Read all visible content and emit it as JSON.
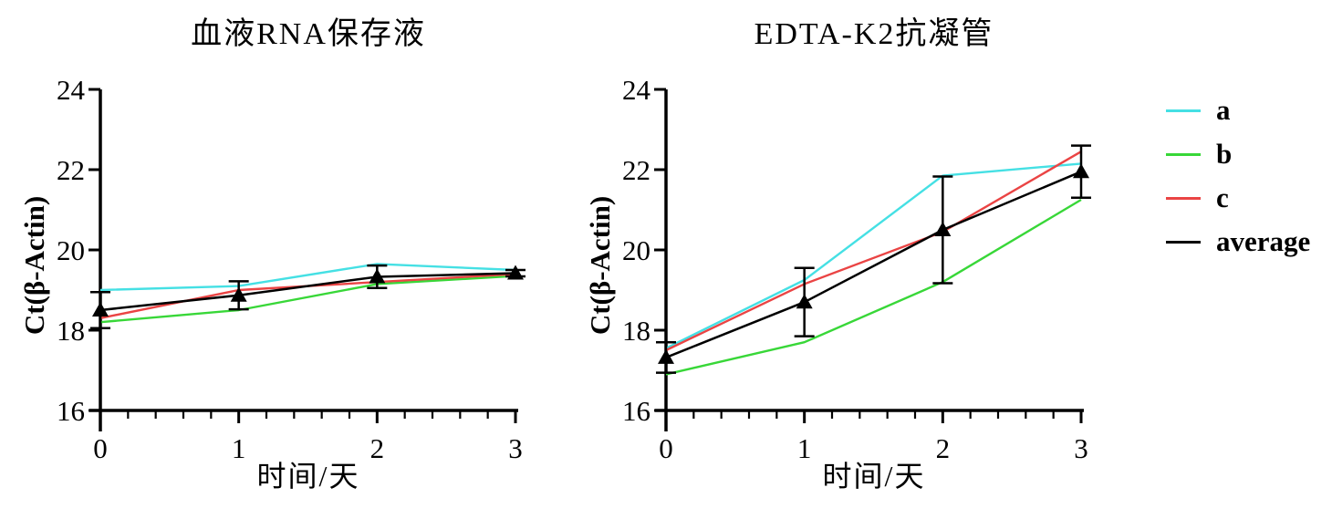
{
  "figure": {
    "colors": {
      "a": "#45E0E4",
      "b": "#38D738",
      "c": "#EA4444",
      "average": "#000000",
      "axis": "#000000"
    },
    "legend": [
      {
        "key": "a",
        "label": "a"
      },
      {
        "key": "b",
        "label": "b"
      },
      {
        "key": "c",
        "label": "c"
      },
      {
        "key": "average",
        "label": "average"
      }
    ],
    "legend_position": "right-of-figure"
  },
  "chart_data": [
    {
      "type": "line",
      "title": "血液RNA保存液",
      "xlabel": "时间/天",
      "ylabel": "Ct(β-Actin)",
      "x": [
        0,
        1,
        2,
        3
      ],
      "xlim": [
        0,
        3
      ],
      "ylim": [
        16,
        24
      ],
      "xticks": [
        0,
        1,
        2,
        3
      ],
      "yticks": [
        16,
        18,
        20,
        22,
        24
      ],
      "x_minor_step": 0.2,
      "grid": false,
      "series": [
        {
          "name": "a",
          "color_key": "a",
          "values": [
            19.0,
            19.1,
            19.65,
            19.5
          ]
        },
        {
          "name": "b",
          "color_key": "b",
          "values": [
            18.2,
            18.5,
            19.15,
            19.35
          ]
        },
        {
          "name": "c",
          "color_key": "c",
          "values": [
            18.3,
            19.0,
            19.2,
            19.4
          ]
        },
        {
          "name": "average",
          "color_key": "average",
          "marker": "triangle",
          "values": [
            18.5,
            18.87,
            19.33,
            19.42
          ],
          "errors": [
            0.45,
            0.35,
            0.28,
            0.08
          ]
        }
      ]
    },
    {
      "type": "line",
      "title": "EDTA-K2抗凝管",
      "xlabel": "时间/天",
      "ylabel": "Ct(β-Actin)",
      "x": [
        0,
        1,
        2,
        3
      ],
      "xlim": [
        0,
        3
      ],
      "ylim": [
        16,
        24
      ],
      "xticks": [
        0,
        1,
        2,
        3
      ],
      "yticks": [
        16,
        18,
        20,
        22,
        24
      ],
      "x_minor_step": 0.2,
      "grid": false,
      "series": [
        {
          "name": "a",
          "color_key": "a",
          "values": [
            17.55,
            19.25,
            21.85,
            22.15
          ]
        },
        {
          "name": "b",
          "color_key": "b",
          "values": [
            16.9,
            17.7,
            19.2,
            21.25
          ]
        },
        {
          "name": "c",
          "color_key": "c",
          "values": [
            17.5,
            19.15,
            20.45,
            22.45
          ]
        },
        {
          "name": "average",
          "color_key": "average",
          "marker": "triangle",
          "values": [
            17.32,
            18.7,
            20.5,
            21.95
          ],
          "errors": [
            0.38,
            0.85,
            1.33,
            0.65
          ]
        }
      ]
    }
  ]
}
